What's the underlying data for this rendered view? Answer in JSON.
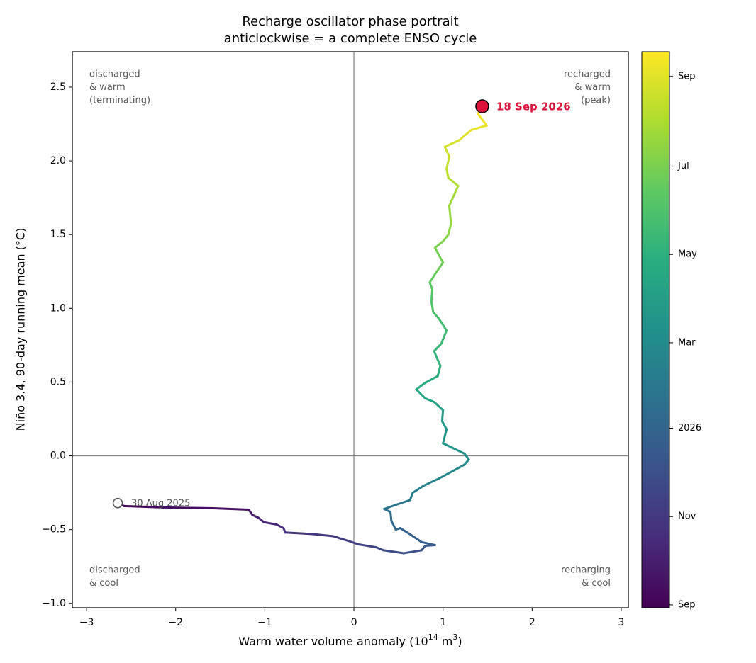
{
  "chart_data": {
    "type": "phase",
    "title": "Recharge oscillator phase portrait",
    "subtitle": "anticlockwise = a complete ENSO cycle",
    "xlabel": [
      "Warm water volume anomaly (10",
      "14",
      " m",
      "3",
      ")"
    ],
    "ylabel": "Niño 3.4, 90-day running mean (°C)",
    "xlim": [
      -3.16,
      3.08
    ],
    "ylim": [
      -1.03,
      2.74
    ],
    "xticks": [
      {
        "value": -3,
        "label": "−3"
      },
      {
        "value": -2,
        "label": "−2"
      },
      {
        "value": -1,
        "label": "−1"
      },
      0,
      1,
      2,
      3
    ],
    "yticks": [
      {
        "value": -1,
        "label": "−1.0"
      },
      {
        "value": -0.5,
        "label": "−0.5"
      },
      {
        "value": 0,
        "label": "0.0"
      },
      0.5,
      {
        "value": 1,
        "label": "1.0"
      },
      1.5,
      {
        "value": 2,
        "label": "2.0"
      },
      2.5
    ],
    "reference_lines": {
      "x": 0,
      "y": 0
    },
    "colormap": "viridis",
    "clim": [
      "2025-08-30",
      "2026-09-18"
    ],
    "cticks": [
      {
        "value": "2025-09-01",
        "label": "Sep"
      },
      {
        "value": "2025-11-01",
        "label": "Nov"
      },
      {
        "value": "2026-01-01",
        "label": "2026"
      },
      {
        "value": "2026-03-01",
        "label": "Mar"
      },
      {
        "value": "2026-05-01",
        "label": "May"
      },
      {
        "value": "2026-07-01",
        "label": "Jul"
      },
      {
        "value": "2026-09-01",
        "label": "Sep"
      }
    ],
    "x": [
      -2.65,
      -2.58,
      -2.14,
      -1.58,
      -1.18,
      -1.14,
      -1.07,
      -1.01,
      -0.87,
      -0.79,
      -0.77,
      -0.47,
      -0.23,
      -0.07,
      0.05,
      0.25,
      0.33,
      0.56,
      0.76,
      0.8,
      0.91,
      0.76,
      0.6,
      0.52,
      0.47,
      0.42,
      0.41,
      0.34,
      0.48,
      0.63,
      0.66,
      0.79,
      0.95,
      1.12,
      1.24,
      1.29,
      1.24,
      1.0,
      1.04,
      0.99,
      1.0,
      0.9,
      0.8,
      0.7,
      0.8,
      0.94,
      0.97,
      0.9,
      0.98,
      1.04,
      0.96,
      0.89,
      0.87,
      0.88,
      0.85,
      0.92,
      1.0,
      0.91,
      1.0,
      1.06,
      1.09,
      1.07,
      1.14,
      1.17,
      1.06,
      1.04,
      1.07,
      1.02,
      1.18,
      1.32,
      1.49,
      1.39,
      1.44
    ],
    "y": [
      -0.32,
      -0.34,
      -0.35,
      -0.355,
      -0.365,
      -0.4,
      -0.42,
      -0.45,
      -0.465,
      -0.49,
      -0.52,
      -0.53,
      -0.545,
      -0.575,
      -0.6,
      -0.62,
      -0.64,
      -0.66,
      -0.64,
      -0.61,
      -0.605,
      -0.585,
      -0.52,
      -0.49,
      -0.5,
      -0.44,
      -0.38,
      -0.36,
      -0.33,
      -0.3,
      -0.25,
      -0.2,
      -0.155,
      -0.1,
      -0.06,
      -0.025,
      0.015,
      0.085,
      0.18,
      0.235,
      0.31,
      0.365,
      0.39,
      0.45,
      0.495,
      0.54,
      0.61,
      0.71,
      0.76,
      0.85,
      0.925,
      0.975,
      1.045,
      1.13,
      1.175,
      1.24,
      1.31,
      1.41,
      1.455,
      1.5,
      1.575,
      1.695,
      1.79,
      1.83,
      1.885,
      1.945,
      2.03,
      2.095,
      2.14,
      2.21,
      2.24,
      2.32,
      2.37
    ],
    "start_label": "30 Aug 2025",
    "end_label": "18 Sep 2026",
    "end_color": "#dc143c",
    "quadrant_labels": {
      "top_left": [
        "discharged",
        "& warm",
        "(terminating)"
      ],
      "top_right": [
        "recharged",
        "& warm",
        "(peak)"
      ],
      "bottom_left": [
        "discharged",
        "& cool"
      ],
      "bottom_right": [
        "recharging",
        "& cool"
      ]
    }
  }
}
